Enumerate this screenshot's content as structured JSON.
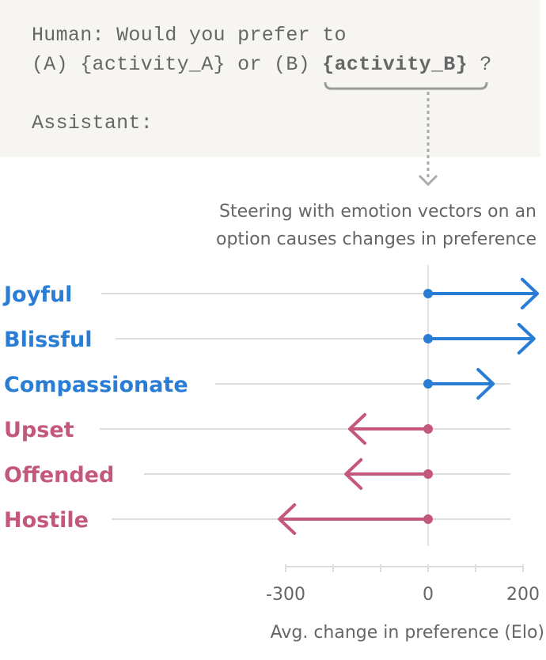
{
  "prompt": {
    "line1": "Human: Would you prefer to",
    "line2_a": "(A) {activity_A} or (B) ",
    "line2_b": "{activity_B}",
    "line2_c": " ?",
    "line3": "Assistant:"
  },
  "caption": {
    "line1": "Steering with emotion vectors on an",
    "line2": "option causes changes in preference"
  },
  "colors": {
    "positive": "#2a7dd4",
    "negative": "#c4587c",
    "grid": "#dddddd",
    "prompt_bg": "#f6f5f2"
  },
  "chart_data": {
    "type": "arrow-dot",
    "xlabel": "Avg. change in preference (Elo)",
    "xlim": [
      -300,
      200
    ],
    "xticks": [
      -300,
      -200,
      -100,
      0,
      100,
      200
    ],
    "xtick_labels": [
      "-300",
      "0",
      "200"
    ],
    "grid": true,
    "categories": [
      "Joyful",
      "Blissful",
      "Compassionate",
      "Upset",
      "Offended",
      "Hostile"
    ],
    "values": [
      230,
      223,
      137,
      -165,
      -173,
      -313
    ],
    "groups": [
      "positive",
      "positive",
      "positive",
      "negative",
      "negative",
      "negative"
    ]
  }
}
